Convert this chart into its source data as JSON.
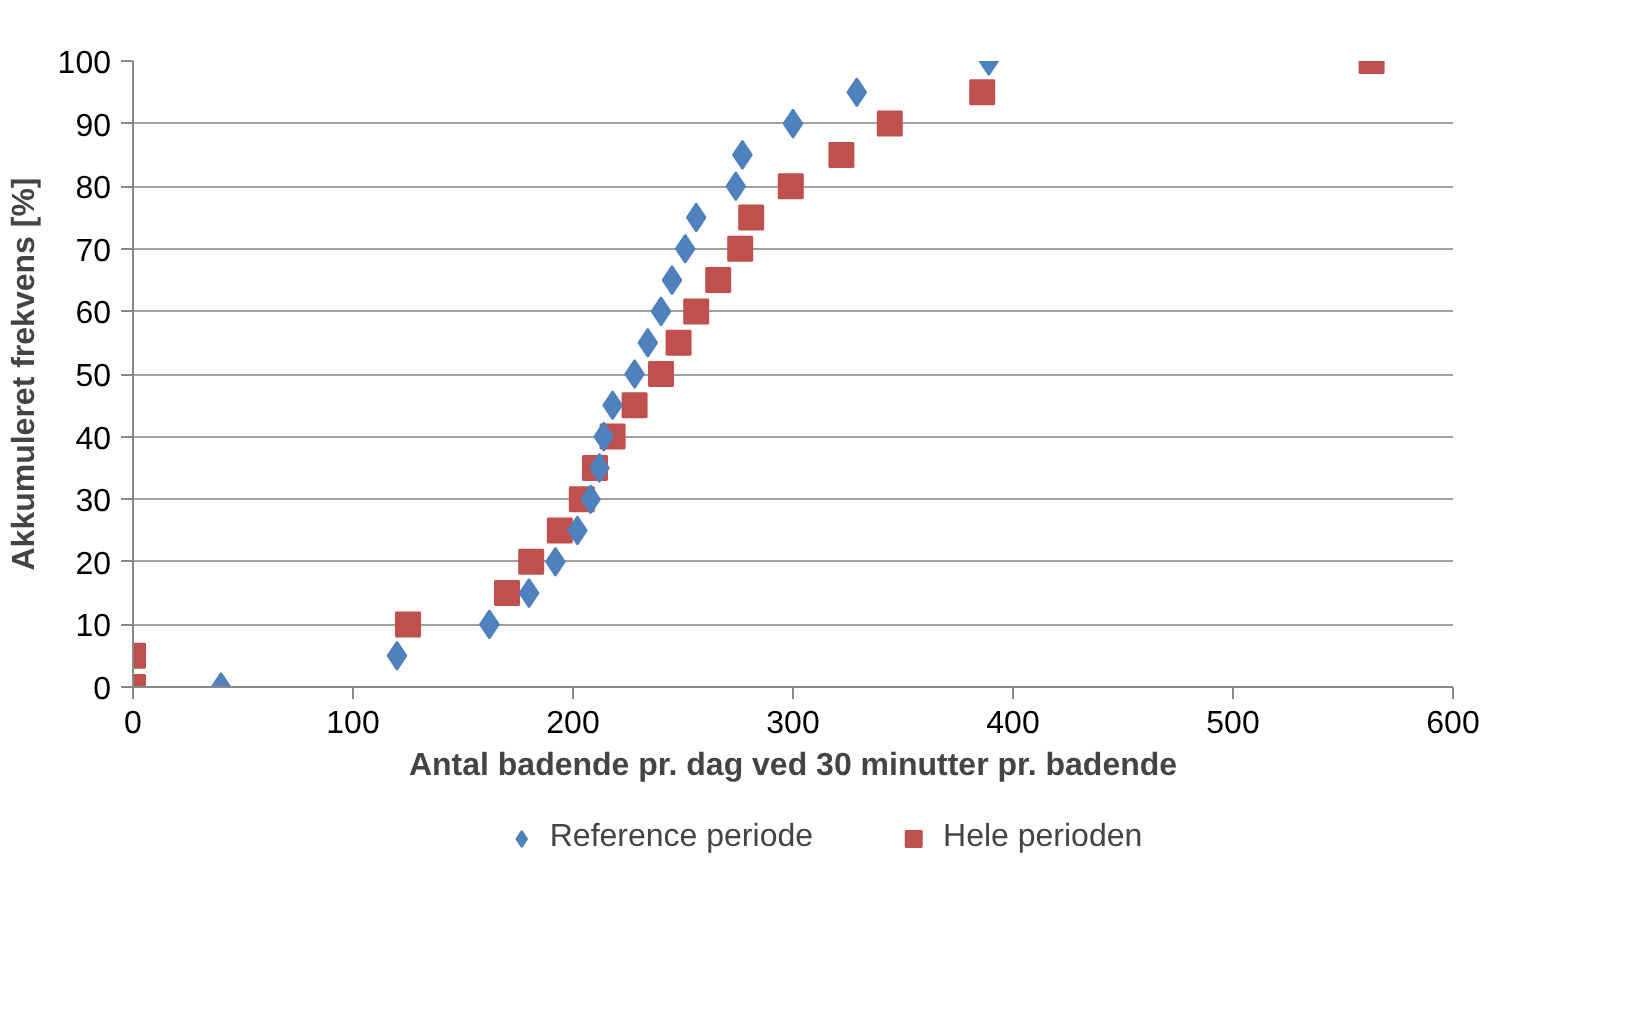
{
  "chart_data": {
    "type": "scatter",
    "xlabel": "Antal badende pr. dag ved 30 minutter pr. badende",
    "ylabel": "Akkumuleret frekvens [%]",
    "xlim": [
      0,
      600
    ],
    "xticks": [
      0,
      100,
      200,
      300,
      400,
      500,
      600
    ],
    "ylim": [
      0,
      100
    ],
    "yticks": [
      0,
      10,
      20,
      30,
      40,
      50,
      60,
      70,
      80,
      90,
      100
    ],
    "grid": "y",
    "legend": "bottom",
    "series": [
      {
        "name": "Reference periode",
        "color": "#4f81bd",
        "marker": "diamond",
        "x": [
          40,
          120,
          162,
          180,
          192,
          202,
          208,
          212,
          214,
          218,
          228,
          234,
          240,
          245,
          251,
          256,
          274,
          277,
          300,
          329,
          389
        ],
        "values": [
          0,
          5,
          10,
          15,
          20,
          25,
          30,
          35,
          40,
          45,
          50,
          55,
          60,
          65,
          70,
          75,
          80,
          85,
          90,
          95,
          100
        ]
      },
      {
        "name": "Hele perioden",
        "color": "#c0504d",
        "marker": "square",
        "x": [
          0,
          0,
          125,
          170,
          181,
          194,
          204,
          210,
          218,
          228,
          240,
          248,
          256,
          266,
          276,
          281,
          299,
          322,
          344,
          386,
          563
        ],
        "values": [
          0,
          5,
          10,
          15,
          20,
          25,
          30,
          35,
          40,
          45,
          50,
          55,
          60,
          65,
          70,
          75,
          80,
          85,
          90,
          95,
          100
        ]
      }
    ]
  }
}
